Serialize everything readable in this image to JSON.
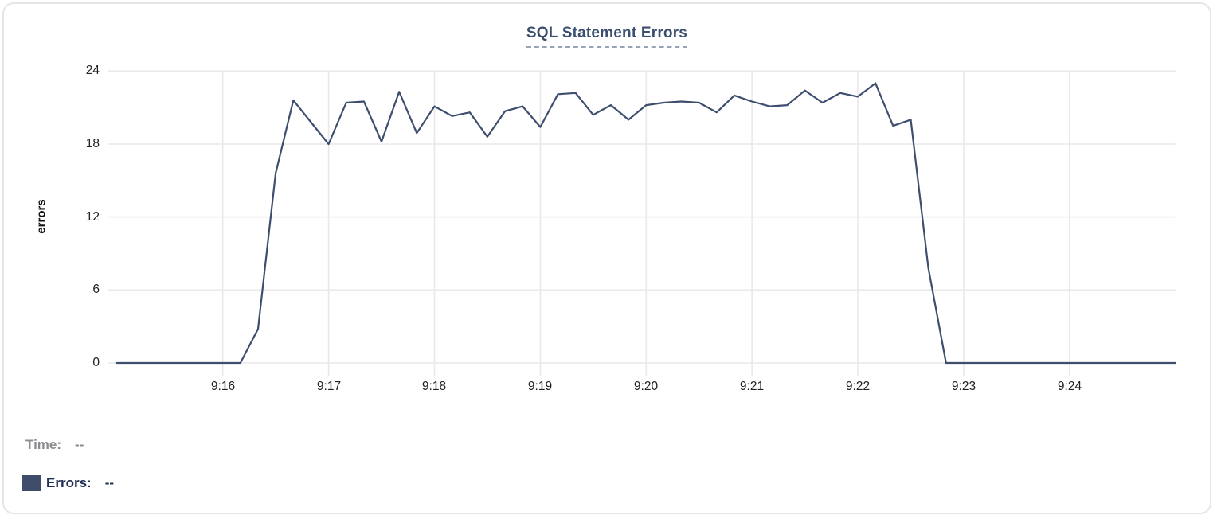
{
  "chart_data": {
    "type": "line",
    "title": "SQL Statement Errors",
    "xlabel": "",
    "ylabel": "errors",
    "ylim": [
      0,
      24
    ],
    "y_ticks": [
      0,
      6,
      12,
      18,
      24
    ],
    "x_tick_labels": [
      "9:16",
      "9:17",
      "9:18",
      "9:19",
      "9:20",
      "9:21",
      "9:22",
      "9:23",
      "9:24"
    ],
    "x_start_time": "9:15:00",
    "x_end_time": "9:25:00",
    "interval_seconds": 10,
    "grid": true,
    "legend_position": "bottom-left",
    "series": [
      {
        "name": "Errors",
        "color": "#3e4e6e",
        "values": [
          0,
          0,
          0,
          0,
          0,
          0,
          0,
          0,
          2.8,
          15.6,
          21.6,
          19.8,
          18,
          21.4,
          21.5,
          18.2,
          22.3,
          18.9,
          21.1,
          20.3,
          20.6,
          18.6,
          20.7,
          21.1,
          19.4,
          22.1,
          22.2,
          20.4,
          21.2,
          20,
          21.2,
          21.4,
          21.5,
          21.4,
          20.6,
          22,
          21.5,
          21.1,
          21.2,
          22.4,
          21.4,
          22.2,
          21.9,
          23,
          19.5,
          20,
          7.8,
          0,
          0,
          0,
          0,
          0,
          0,
          0,
          0,
          0,
          0,
          0,
          0,
          0,
          0
        ]
      }
    ]
  },
  "tooltip_readout": {
    "time_label": "Time:",
    "time_value": "--",
    "errors_label": "Errors:",
    "errors_value": "--"
  },
  "colors": {
    "line": "#3e4e6e",
    "swatch": "#3f4d6a",
    "title": "#3a4e70",
    "gridline": "#e9e9eb",
    "tick_text": "#202124",
    "time_text": "#8b8b90",
    "errors_text": "#212d55",
    "card_border": "#e5e6e9"
  }
}
